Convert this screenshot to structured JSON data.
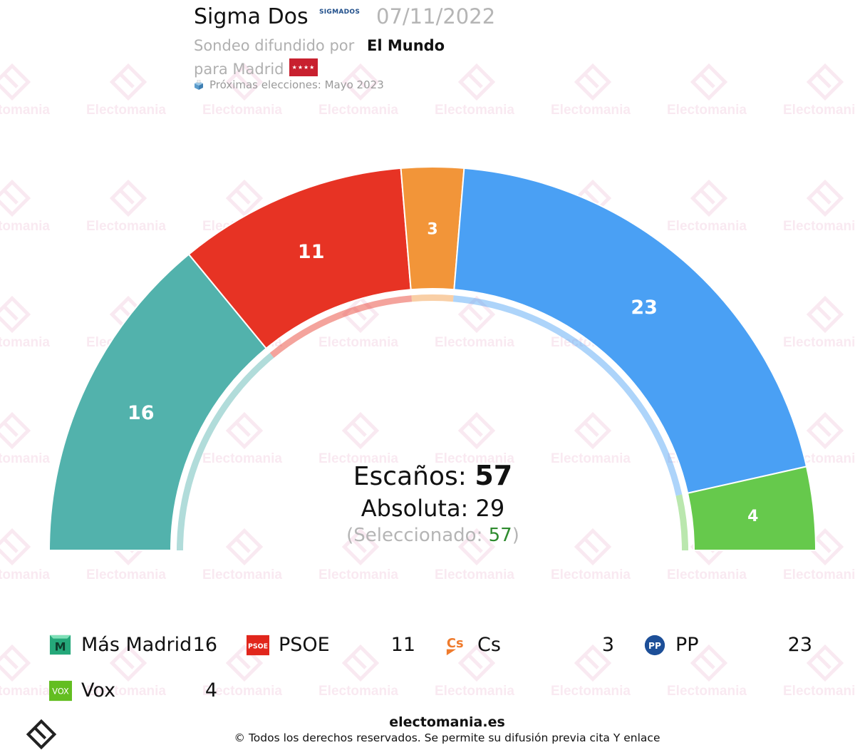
{
  "header": {
    "pollster": "Sigma Dos",
    "pollster_logo": "SIGMADOS",
    "date": "07/11/2022",
    "subtitle_prefix": "Sondeo difundido por",
    "media": "El Mundo",
    "region_prefix": "para Madrid",
    "region_flag": "Madrid flag",
    "region_flag_stars": "★★★★",
    "next_elections": "Próximas elecciones: Mayo 2023"
  },
  "summary": {
    "escanos_label": "Escaños:",
    "escanos_value": "57",
    "absoluta_label": "Absoluta:",
    "absoluta_value": "29",
    "seleccionado_label": "(Seleccionado:",
    "seleccionado_value": "57",
    "seleccionado_close": ")"
  },
  "chart_data": {
    "type": "parliament-semicircle",
    "total_seats": 57,
    "majority": 29,
    "selected": 57,
    "parties": [
      {
        "name": "Más Madrid",
        "seats": 16,
        "color": "#52b2ac",
        "icon": "mas-madrid-logo",
        "icon_text": "M"
      },
      {
        "name": "PSOE",
        "seats": 11,
        "color": "#e73324",
        "icon": "psoe-logo",
        "icon_text": "PSOE"
      },
      {
        "name": "Cs",
        "seats": 3,
        "color": "#f29539",
        "icon": "cs-logo",
        "icon_text": "Cs"
      },
      {
        "name": "PP",
        "seats": 23,
        "color": "#4aa0f4",
        "icon": "pp-logo",
        "icon_text": "PP"
      },
      {
        "name": "Vox",
        "seats": 4,
        "color": "#66c94c",
        "icon": "vox-logo",
        "icon_text": "VOX"
      }
    ]
  },
  "watermark_text": "Electomania",
  "footer": {
    "site": "electomania.es",
    "copyright": "© Todos los derechos reservados. Se permite su difusión previa cita Y enlace"
  },
  "colors": {
    "accent_selected": "#2e8b2e"
  }
}
